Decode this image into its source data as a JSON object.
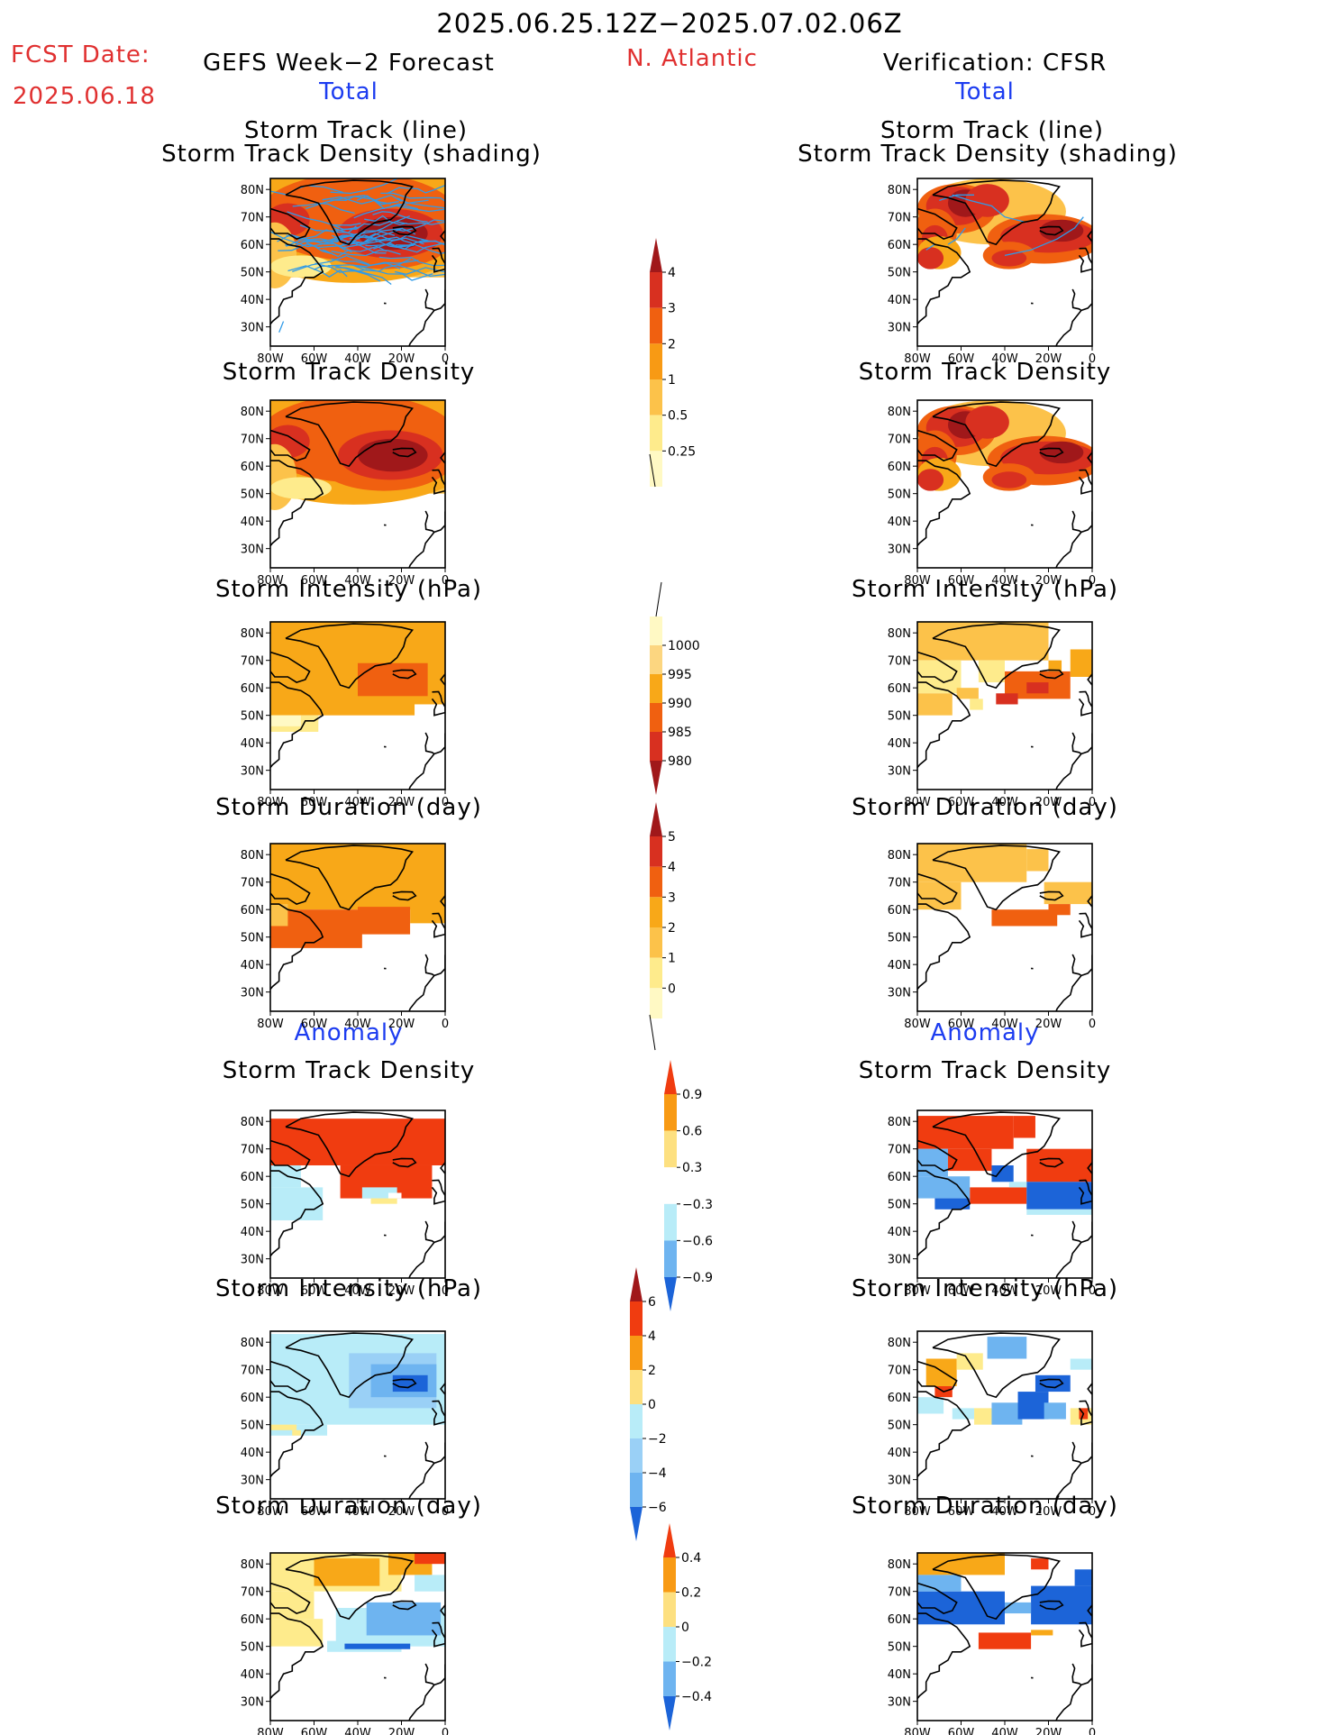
{
  "header": {
    "date_range": "2025.06.25.12Z−2025.07.02.06Z",
    "fcst_label": "FCST Date:",
    "fcst_date": "2025.06.18",
    "left_title": "GEFS Week−2 Forecast",
    "region": "N. Atlantic",
    "right_title": "Verification: CFSR"
  },
  "sections": {
    "total_left": "Total",
    "total_right": "Total",
    "anomaly_left": "Anomaly",
    "anomaly_right": "Anomaly"
  },
  "panel_titles": {
    "track_line_1": "Storm Track (line)",
    "track_line_2": "Storm Track Density (shading)",
    "density": "Storm Track Density",
    "intensity": "Storm Intensity (hPa)",
    "duration": "Storm Duration (day)"
  },
  "axes": {
    "lon_labels": [
      "80W",
      "60W",
      "40W",
      "20W",
      "0"
    ],
    "lat_labels": [
      "80N",
      "70N",
      "60N",
      "50N",
      "40N",
      "30N"
    ]
  },
  "colorbars": {
    "density": {
      "labels": [
        "4",
        "3",
        "2",
        "1",
        "0.5",
        "0.25"
      ],
      "colors": [
        "#a0181a",
        "#d83020",
        "#f06010",
        "#f89a14",
        "#fcc24a",
        "#feeb8c",
        "#fff9c4"
      ]
    },
    "intensity": {
      "labels": [
        "1000",
        "995",
        "990",
        "985",
        "980"
      ],
      "colors": [
        "#fff9c4",
        "#fcd680",
        "#f8a818",
        "#f06010",
        "#d83020",
        "#a0181a"
      ]
    },
    "duration": {
      "labels": [
        "5",
        "4",
        "3",
        "2",
        "1",
        "0"
      ],
      "colors": [
        "#a0181a",
        "#d83020",
        "#f06010",
        "#f8a818",
        "#fcc24a",
        "#feeb8c",
        "#fff9c4"
      ]
    },
    "anom_density": {
      "labels": [
        "0.9",
        "0.6",
        "0.3",
        "−0.3",
        "−0.6",
        "−0.9"
      ],
      "colors": [
        "#f03c10",
        "#f89a14",
        "#fde080",
        "#ffffff",
        "#b8ecf8",
        "#6eb4f0",
        "#1c64d8"
      ]
    },
    "anom_intensity": {
      "labels": [
        "6",
        "4",
        "2",
        "0",
        "−2",
        "−4",
        "−6"
      ],
      "colors": [
        "#a0181a",
        "#f03c10",
        "#f89a14",
        "#fde080",
        "#b8ecf8",
        "#9ad0f6",
        "#6eb4f0",
        "#1c64d8"
      ]
    },
    "anom_duration": {
      "labels": [
        "0.4",
        "0.2",
        "0",
        "−0.2",
        "−0.4"
      ],
      "colors": [
        "#f03c10",
        "#f89a14",
        "#fde080",
        "#b8ecf8",
        "#6eb4f0",
        "#1c64d8"
      ]
    }
  },
  "colors": {
    "dark_red": "#a0181a",
    "red": "#d83020",
    "orange_red": "#f06010",
    "orange": "#f8a818",
    "light_orange": "#fcc24a",
    "yellow": "#feeb8c",
    "pale_yellow": "#fff9c4",
    "anom_red": "#f03c10",
    "light_blue": "#b8ecf8",
    "mid_blue": "#6eb4f0",
    "blue": "#1c64d8",
    "track_blue": "#2f9ae8"
  }
}
